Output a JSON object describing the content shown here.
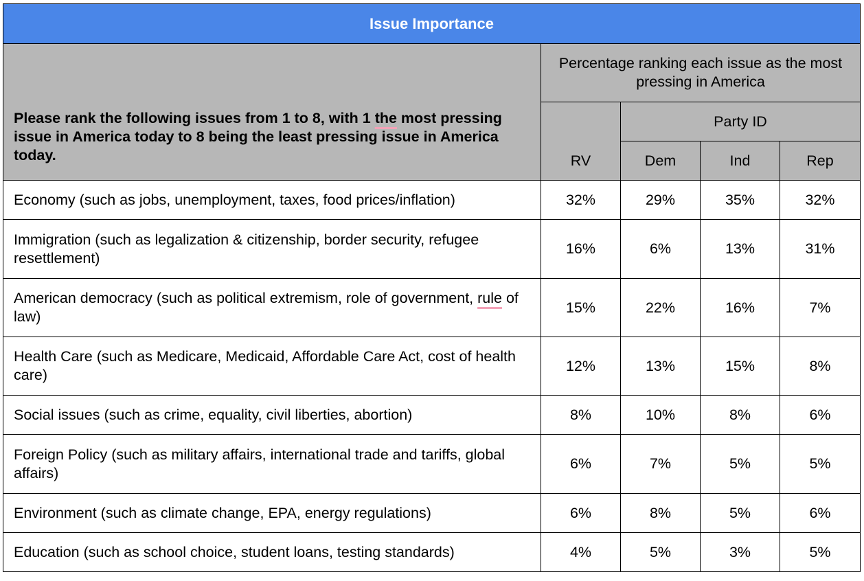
{
  "title": "Issue Importance",
  "question": {
    "part1": "Please rank the following issues from 1 to 8, with 1 ",
    "part2": "the",
    "part3": " most pressing issue in America today to 8 being the least pressing issue in America today."
  },
  "header": {
    "percentage_label": "Percentage ranking each issue as the most pressing in America",
    "party_id_label": "Party ID",
    "rv_label": "RV",
    "dem_label": "Dem",
    "ind_label": "Ind",
    "rep_label": "Rep"
  },
  "rows": [
    {
      "issue": "Economy (such as jobs, unemployment, taxes, food prices/inflation)",
      "rv": "32%",
      "dem": "29%",
      "ind": "35%",
      "rep": "32%"
    },
    {
      "issue": "Immigration (such as legalization & citizenship, border security, refugee resettlement)",
      "rv": "16%",
      "dem": "6%",
      "ind": "13%",
      "rep": "31%"
    },
    {
      "issue_part1": "American democracy (such as political extremism, role of government, ",
      "issue_part2": "rule",
      "issue_part3": " of law)",
      "rv": "15%",
      "dem": "22%",
      "ind": "16%",
      "rep": "7%"
    },
    {
      "issue": "Health Care (such as Medicare, Medicaid, Affordable Care Act, cost of health care)",
      "rv": "12%",
      "dem": "13%",
      "ind": "15%",
      "rep": "8%"
    },
    {
      "issue": "Social issues (such as crime, equality, civil liberties, abortion)",
      "rv": "8%",
      "dem": "10%",
      "ind": "8%",
      "rep": "6%"
    },
    {
      "issue": "Foreign Policy (such as military affairs, international trade and tariffs, global affairs)",
      "rv": "6%",
      "dem": "7%",
      "ind": "5%",
      "rep": "5%"
    },
    {
      "issue": "Environment (such as climate change, EPA, energy regulations)",
      "rv": "6%",
      "dem": "8%",
      "ind": "5%",
      "rep": "6%"
    },
    {
      "issue": "Education (such as school choice, student loans, testing standards)",
      "rv": "4%",
      "dem": "5%",
      "ind": "3%",
      "rep": "5%"
    }
  ],
  "colors": {
    "title_bg": "#4a86e8",
    "header_bg": "#b7b7b7",
    "spellcheck_underline": "#f4a3b8"
  }
}
